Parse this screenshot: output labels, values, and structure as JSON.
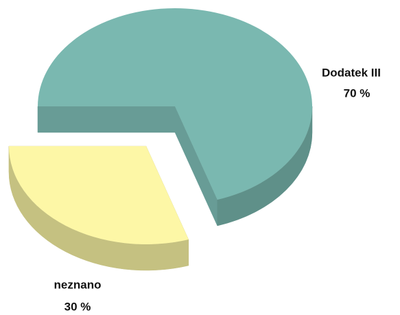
{
  "chart_data": {
    "type": "pie3d",
    "categories": [
      "Dodatek III",
      "neznano"
    ],
    "values": [
      70,
      30
    ],
    "value_labels": [
      "70 %",
      "30 %"
    ],
    "colors": [
      "#7ab8b0",
      "#fdf7a6"
    ]
  }
}
